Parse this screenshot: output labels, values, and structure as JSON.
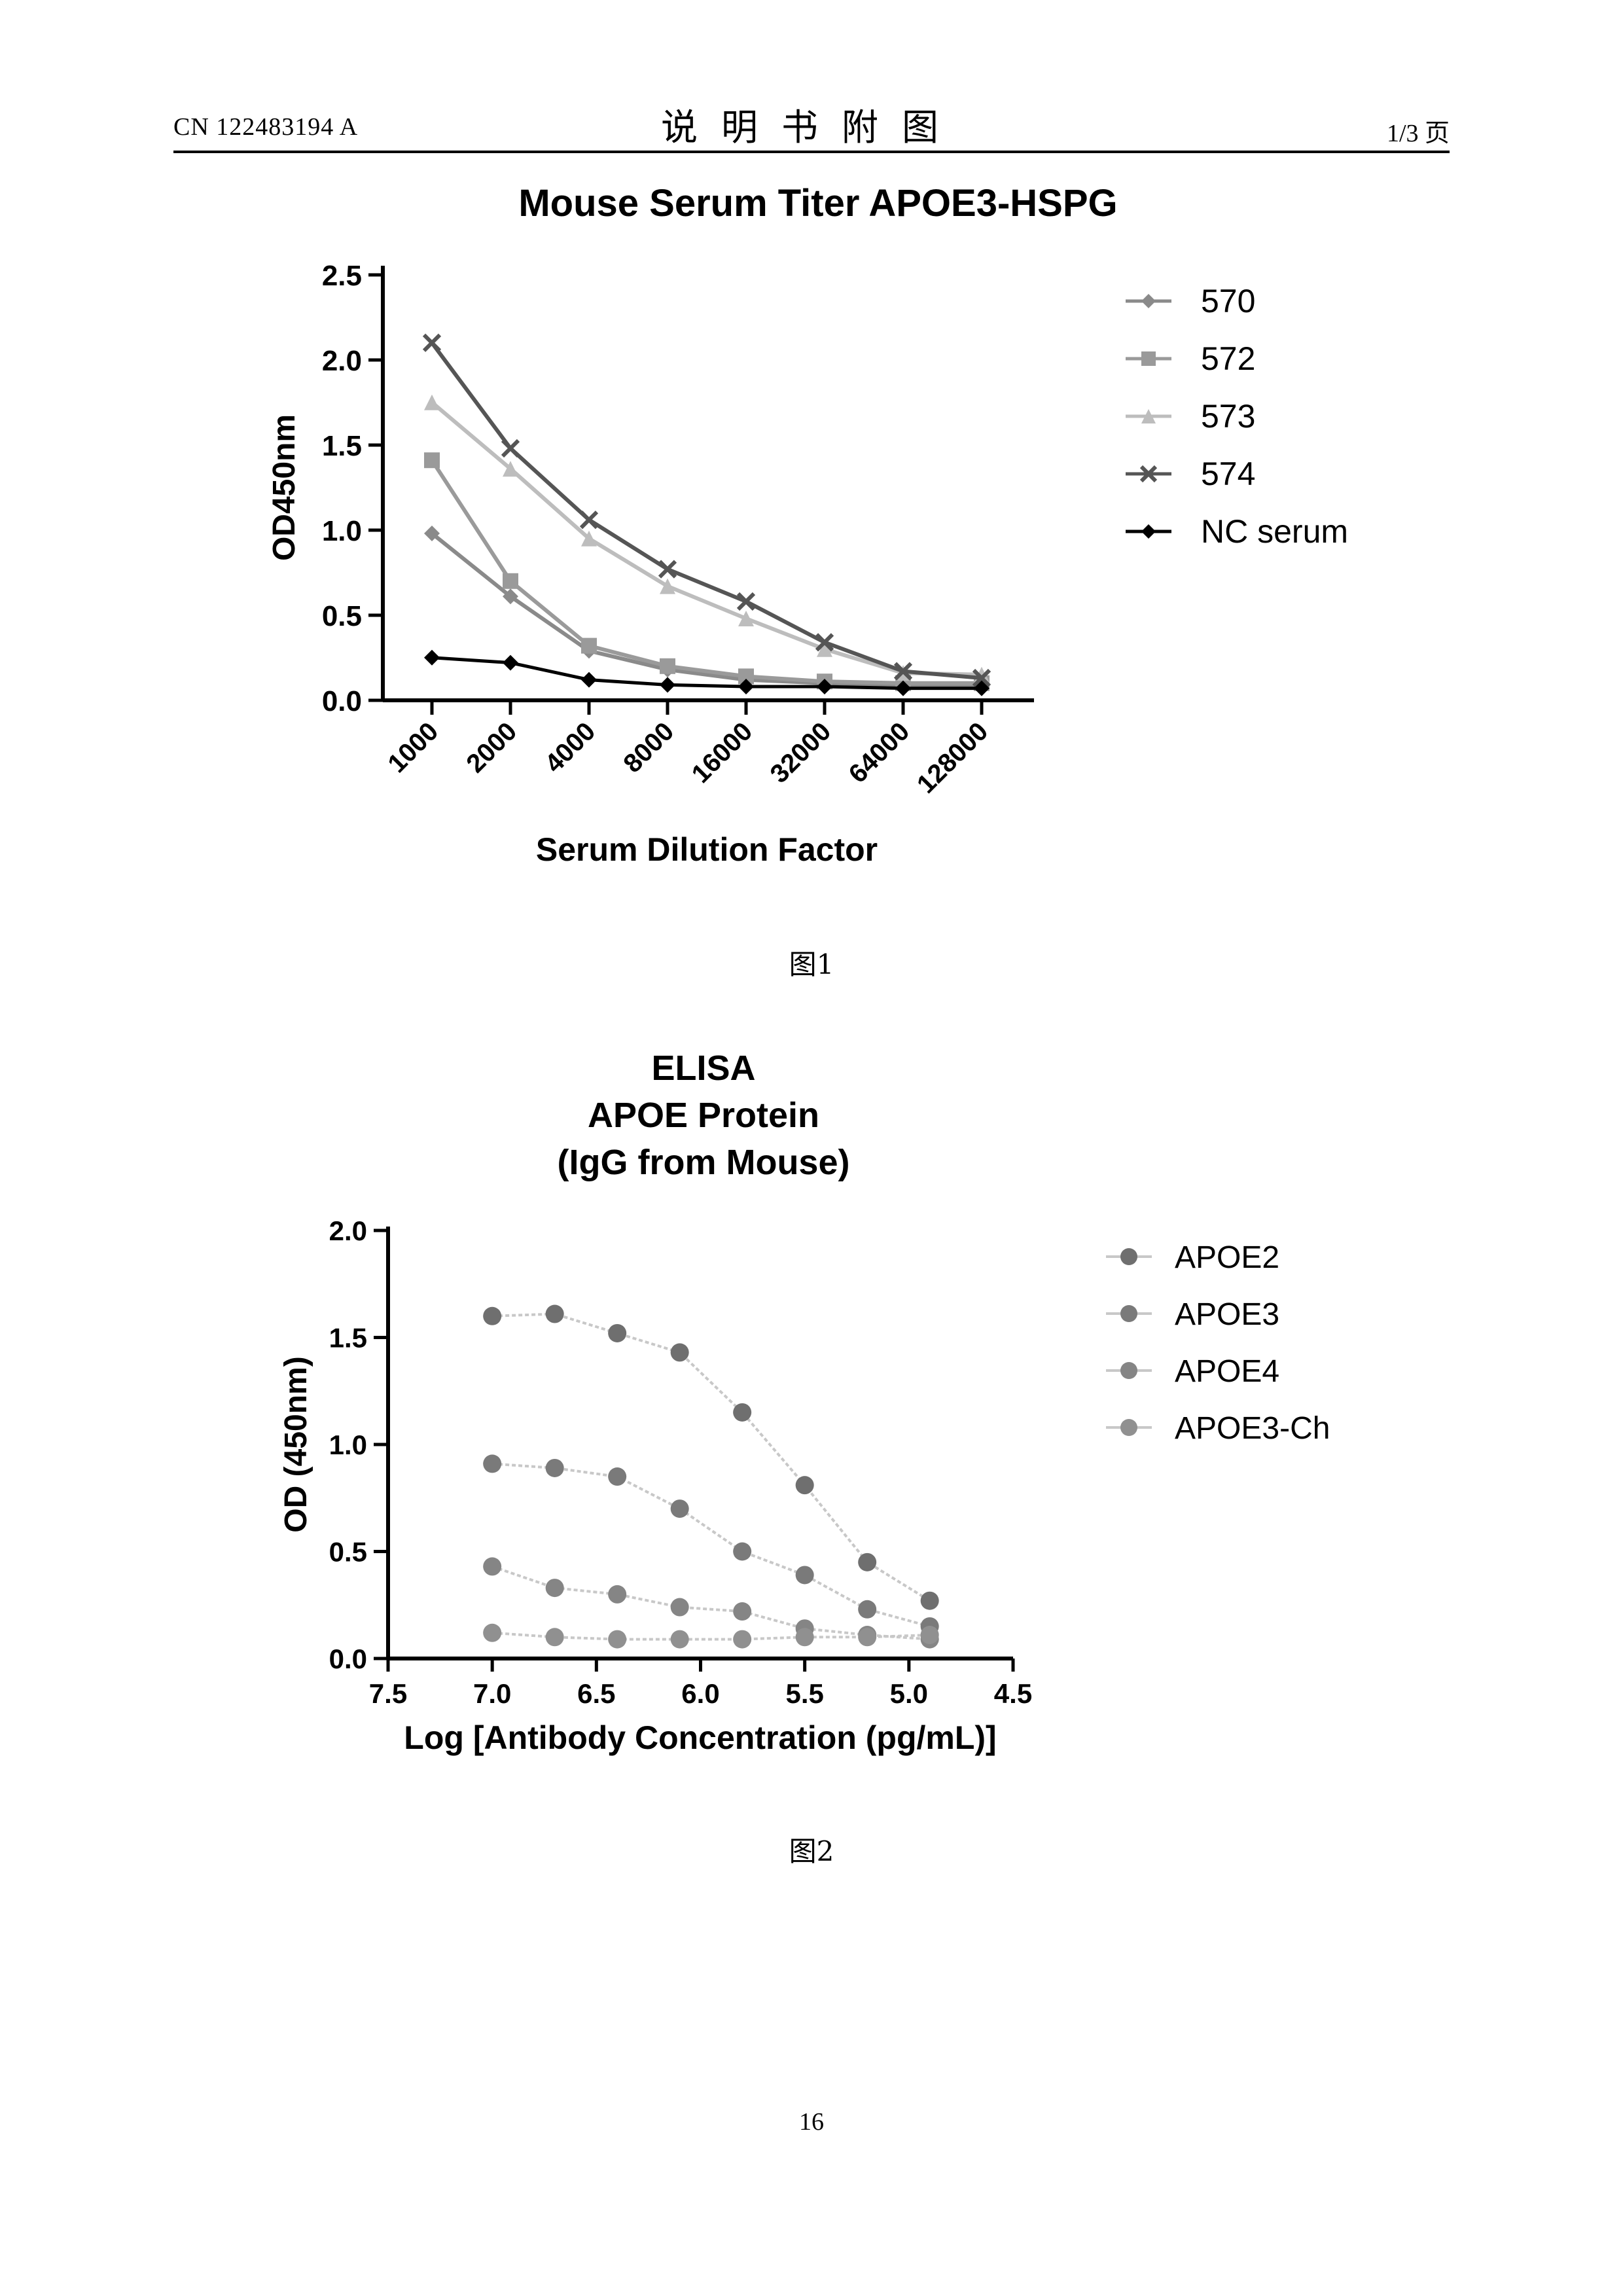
{
  "header": {
    "doc_number": "CN 122483194 A",
    "section_title": "说明书附图",
    "page_of": "1/3 页"
  },
  "figures": [
    {
      "caption": "图1"
    },
    {
      "caption": "图2"
    }
  ],
  "page_number": "16",
  "chart_data": [
    {
      "type": "line",
      "title": "Mouse Serum Titer  APOE3-HSPG",
      "xlabel": "Serum Dilution Factor",
      "ylabel": "OD450nm",
      "categories": [
        "1000",
        "2000",
        "4000",
        "8000",
        "16000",
        "32000",
        "64000",
        "128000"
      ],
      "ylim": [
        0,
        2.5
      ],
      "yticks": [
        "0.0",
        "0.5",
        "1.0",
        "1.5",
        "2.0",
        "2.5"
      ],
      "legend_position": "right",
      "grid": false,
      "series": [
        {
          "name": "570",
          "values": [
            0.95,
            0.58,
            0.26,
            0.15,
            0.09,
            0.07,
            0.06,
            0.06
          ],
          "color": "#8a8a8a",
          "marker": "diamond"
        },
        {
          "name": "572",
          "values": [
            1.38,
            0.67,
            0.29,
            0.17,
            0.11,
            0.08,
            0.07,
            0.07
          ],
          "color": "#9a9a9a",
          "marker": "square"
        },
        {
          "name": "573",
          "values": [
            1.72,
            1.33,
            0.92,
            0.64,
            0.45,
            0.27,
            0.13,
            0.12
          ],
          "color": "#bdbdbd",
          "marker": "triangle"
        },
        {
          "name": "574",
          "values": [
            2.07,
            1.45,
            1.03,
            0.74,
            0.55,
            0.31,
            0.14,
            0.1
          ],
          "color": "#555555",
          "marker": "cross"
        },
        {
          "name": "NC serum",
          "values": [
            0.22,
            0.19,
            0.09,
            0.06,
            0.05,
            0.05,
            0.04,
            0.04
          ],
          "color": "#000000",
          "marker": "diamond"
        }
      ]
    },
    {
      "type": "scatter",
      "title": [
        "ELISA",
        "APOE Protein",
        "(IgG from Mouse)"
      ],
      "xlabel": "Log [Antibody Concentration (pg/mL)]",
      "ylabel": "OD (450nm)",
      "xlim": [
        7.5,
        4.5
      ],
      "ylim": [
        0,
        2.0
      ],
      "xticks": [
        "7.5",
        "7.0",
        "6.5",
        "6.0",
        "5.5",
        "5.0",
        "4.5"
      ],
      "yticks": [
        "0.0",
        "0.5",
        "1.0",
        "1.5",
        "2.0"
      ],
      "x_reversed": true,
      "legend_position": "right",
      "grid": false,
      "series": [
        {
          "name": "APOE2",
          "x": [
            7.0,
            6.7,
            6.4,
            6.1,
            5.8,
            5.5,
            5.2,
            4.9
          ],
          "y": [
            1.6,
            1.61,
            1.52,
            1.43,
            1.15,
            0.81,
            0.45,
            0.27
          ],
          "color": "#6f6f6f"
        },
        {
          "name": "APOE3",
          "x": [
            7.0,
            6.7,
            6.4,
            6.1,
            5.8,
            5.5,
            5.2,
            4.9
          ],
          "y": [
            0.91,
            0.89,
            0.85,
            0.7,
            0.5,
            0.39,
            0.23,
            0.15
          ],
          "color": "#7a7a7a"
        },
        {
          "name": "APOE4",
          "x": [
            7.0,
            6.7,
            6.4,
            6.1,
            5.8,
            5.5,
            5.2,
            4.9
          ],
          "y": [
            0.43,
            0.33,
            0.3,
            0.24,
            0.22,
            0.14,
            0.11,
            0.09
          ],
          "color": "#858585"
        },
        {
          "name": "APOE3-Ch",
          "x": [
            7.0,
            6.7,
            6.4,
            6.1,
            5.8,
            5.5,
            5.2,
            4.9
          ],
          "y": [
            0.12,
            0.1,
            0.09,
            0.09,
            0.09,
            0.1,
            0.1,
            0.11
          ],
          "color": "#909090"
        }
      ]
    }
  ]
}
